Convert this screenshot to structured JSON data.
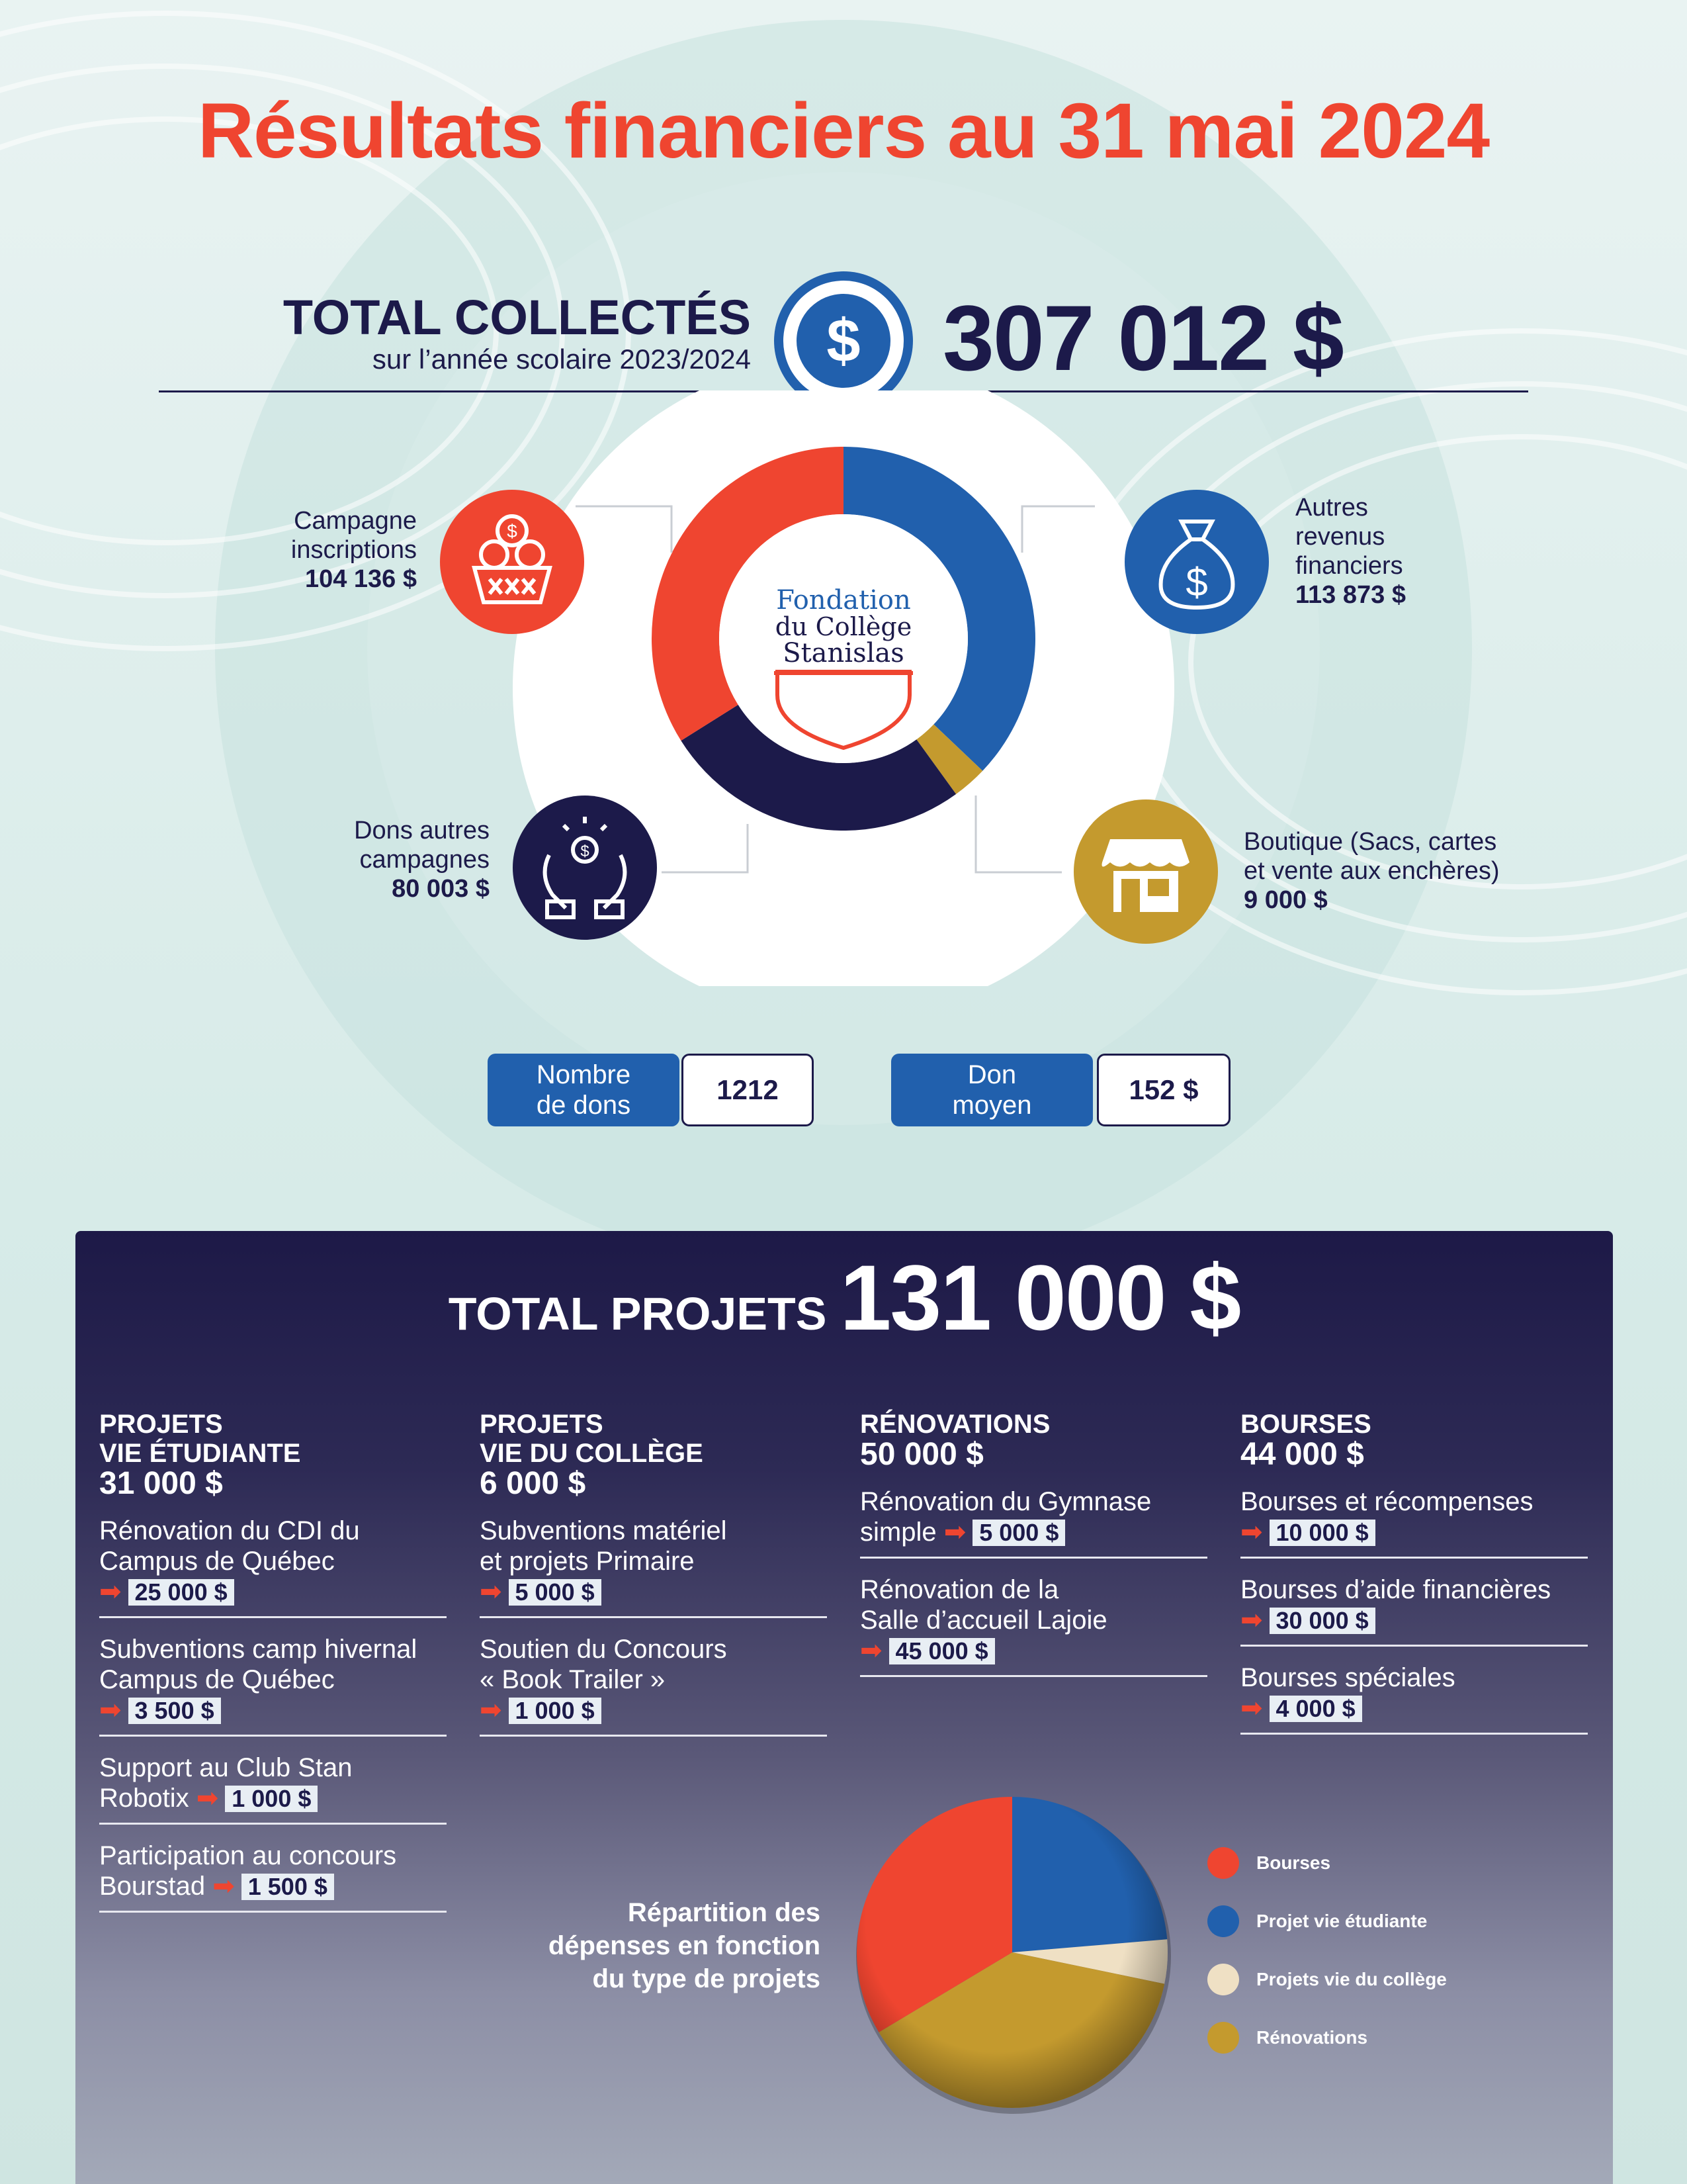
{
  "title": "Résultats financiers au 31 mai 2024",
  "total_collectes": {
    "label": "TOTAL COLLECTÉS",
    "sublabel": "sur l’année scolaire 2023/2024",
    "amount": "307 012 $",
    "icon": "dollar-icon"
  },
  "logo": {
    "line1": "Fondation",
    "line2": "du Collège",
    "line3": "Stanislas"
  },
  "categories": {
    "inscriptions": {
      "line1": "Campagne",
      "line2": "inscriptions",
      "amount": "104 136 $",
      "icon": "coin-basket-icon"
    },
    "autres_revenus": {
      "line1": "Autres",
      "line2": "revenus",
      "line3": "financiers",
      "amount": "113 873 $",
      "icon": "money-bag-icon"
    },
    "dons": {
      "line1": "Dons autres",
      "line2": "campagnes",
      "amount": "80 003 $",
      "icon": "giving-hands-icon"
    },
    "boutique": {
      "line1": "Boutique (Sacs, cartes",
      "line2": "et vente aux enchères)",
      "amount": "9 000 $",
      "icon": "shop-icon"
    }
  },
  "stats": {
    "dons_label_1": "Nombre",
    "dons_label_2": "de dons",
    "dons_value": "1212",
    "moyen_label_1": "Don",
    "moyen_label_2": "moyen",
    "moyen_value": "152 $"
  },
  "total_projets": {
    "label": "TOTAL PROJETS",
    "amount": "131 000 $"
  },
  "columns": [
    {
      "head1": "PROJETS",
      "head2": "VIE ÉTUDIANTE",
      "amount": "31 000 $",
      "items": [
        {
          "line1": "Rénovation du CDI du",
          "line2": "Campus de Québec",
          "value": "25 000 $"
        },
        {
          "line1": "Subventions camp hivernal",
          "line2": "Campus de Québec",
          "value": "3 500 $"
        },
        {
          "line1": "Support au Club Stan",
          "line2": "Robotix",
          "value": "1 000 $"
        },
        {
          "line1": "Participation au concours",
          "line2": "Bourstad",
          "value": "1 500 $"
        }
      ]
    },
    {
      "head1": "PROJETS",
      "head2": "VIE DU COLLÈGE",
      "amount": "6 000 $",
      "items": [
        {
          "line1": "Subventions matériel",
          "line2": "et projets Primaire",
          "value": "5 000 $"
        },
        {
          "line1": "Soutien du Concours",
          "line2": "« Book Trailer »",
          "value": "1 000 $"
        }
      ]
    },
    {
      "head1": "RÉNOVATIONS",
      "amount": "50 000 $",
      "items": [
        {
          "line1": "Rénovation du Gymnase",
          "line2": "simple",
          "value": "5 000 $"
        },
        {
          "line1": "Rénovation de la",
          "line2": "Salle d’accueil Lajoie",
          "value": "45 000 $"
        }
      ]
    },
    {
      "head1": "BOURSES",
      "amount": "44 000 $",
      "items": [
        {
          "line1": "Bourses et récompenses",
          "value": "10 000 $"
        },
        {
          "line1": "Bourses d’aide financières",
          "value": "30 000 $"
        },
        {
          "line1": "Bourses spéciales",
          "value": "4 000 $"
        }
      ]
    }
  ],
  "pie_caption": {
    "line1": "Répartition des",
    "line2": "dépenses en fonction",
    "line3": "du type de projets"
  },
  "chart_data": [
    {
      "type": "pie",
      "variant": "donut",
      "categories": [
        "Autres revenus financiers",
        "Boutique (Sacs, cartes et vente aux enchères)",
        "Dons autres campagnes",
        "Campagne inscriptions"
      ],
      "values": [
        113873,
        9000,
        80003,
        104136
      ],
      "colors": [
        "#2160ad",
        "#c49a2e",
        "#1c1a4a",
        "#ef4530"
      ],
      "title": ""
    },
    {
      "type": "pie",
      "categories": [
        "Projet vie étudiante",
        "Projets vie du collège",
        "Rénovations",
        "Bourses"
      ],
      "values": [
        31000,
        6000,
        50000,
        44000
      ],
      "colors": [
        "#2160ad",
        "#efe0c4",
        "#c49a2e",
        "#ef4530"
      ],
      "legend": [
        "Bourses",
        "Projet vie étudiante",
        "Projets vie du collège",
        "Rénovations"
      ],
      "legend_colors": [
        "#ef4530",
        "#2160ad",
        "#efe0c4",
        "#c49a2e"
      ],
      "legend_position": "right",
      "title": ""
    }
  ],
  "colors": {
    "red": "#ef4530",
    "blue": "#2160ad",
    "navy": "#1c1a4a",
    "gold": "#c49a2e"
  }
}
